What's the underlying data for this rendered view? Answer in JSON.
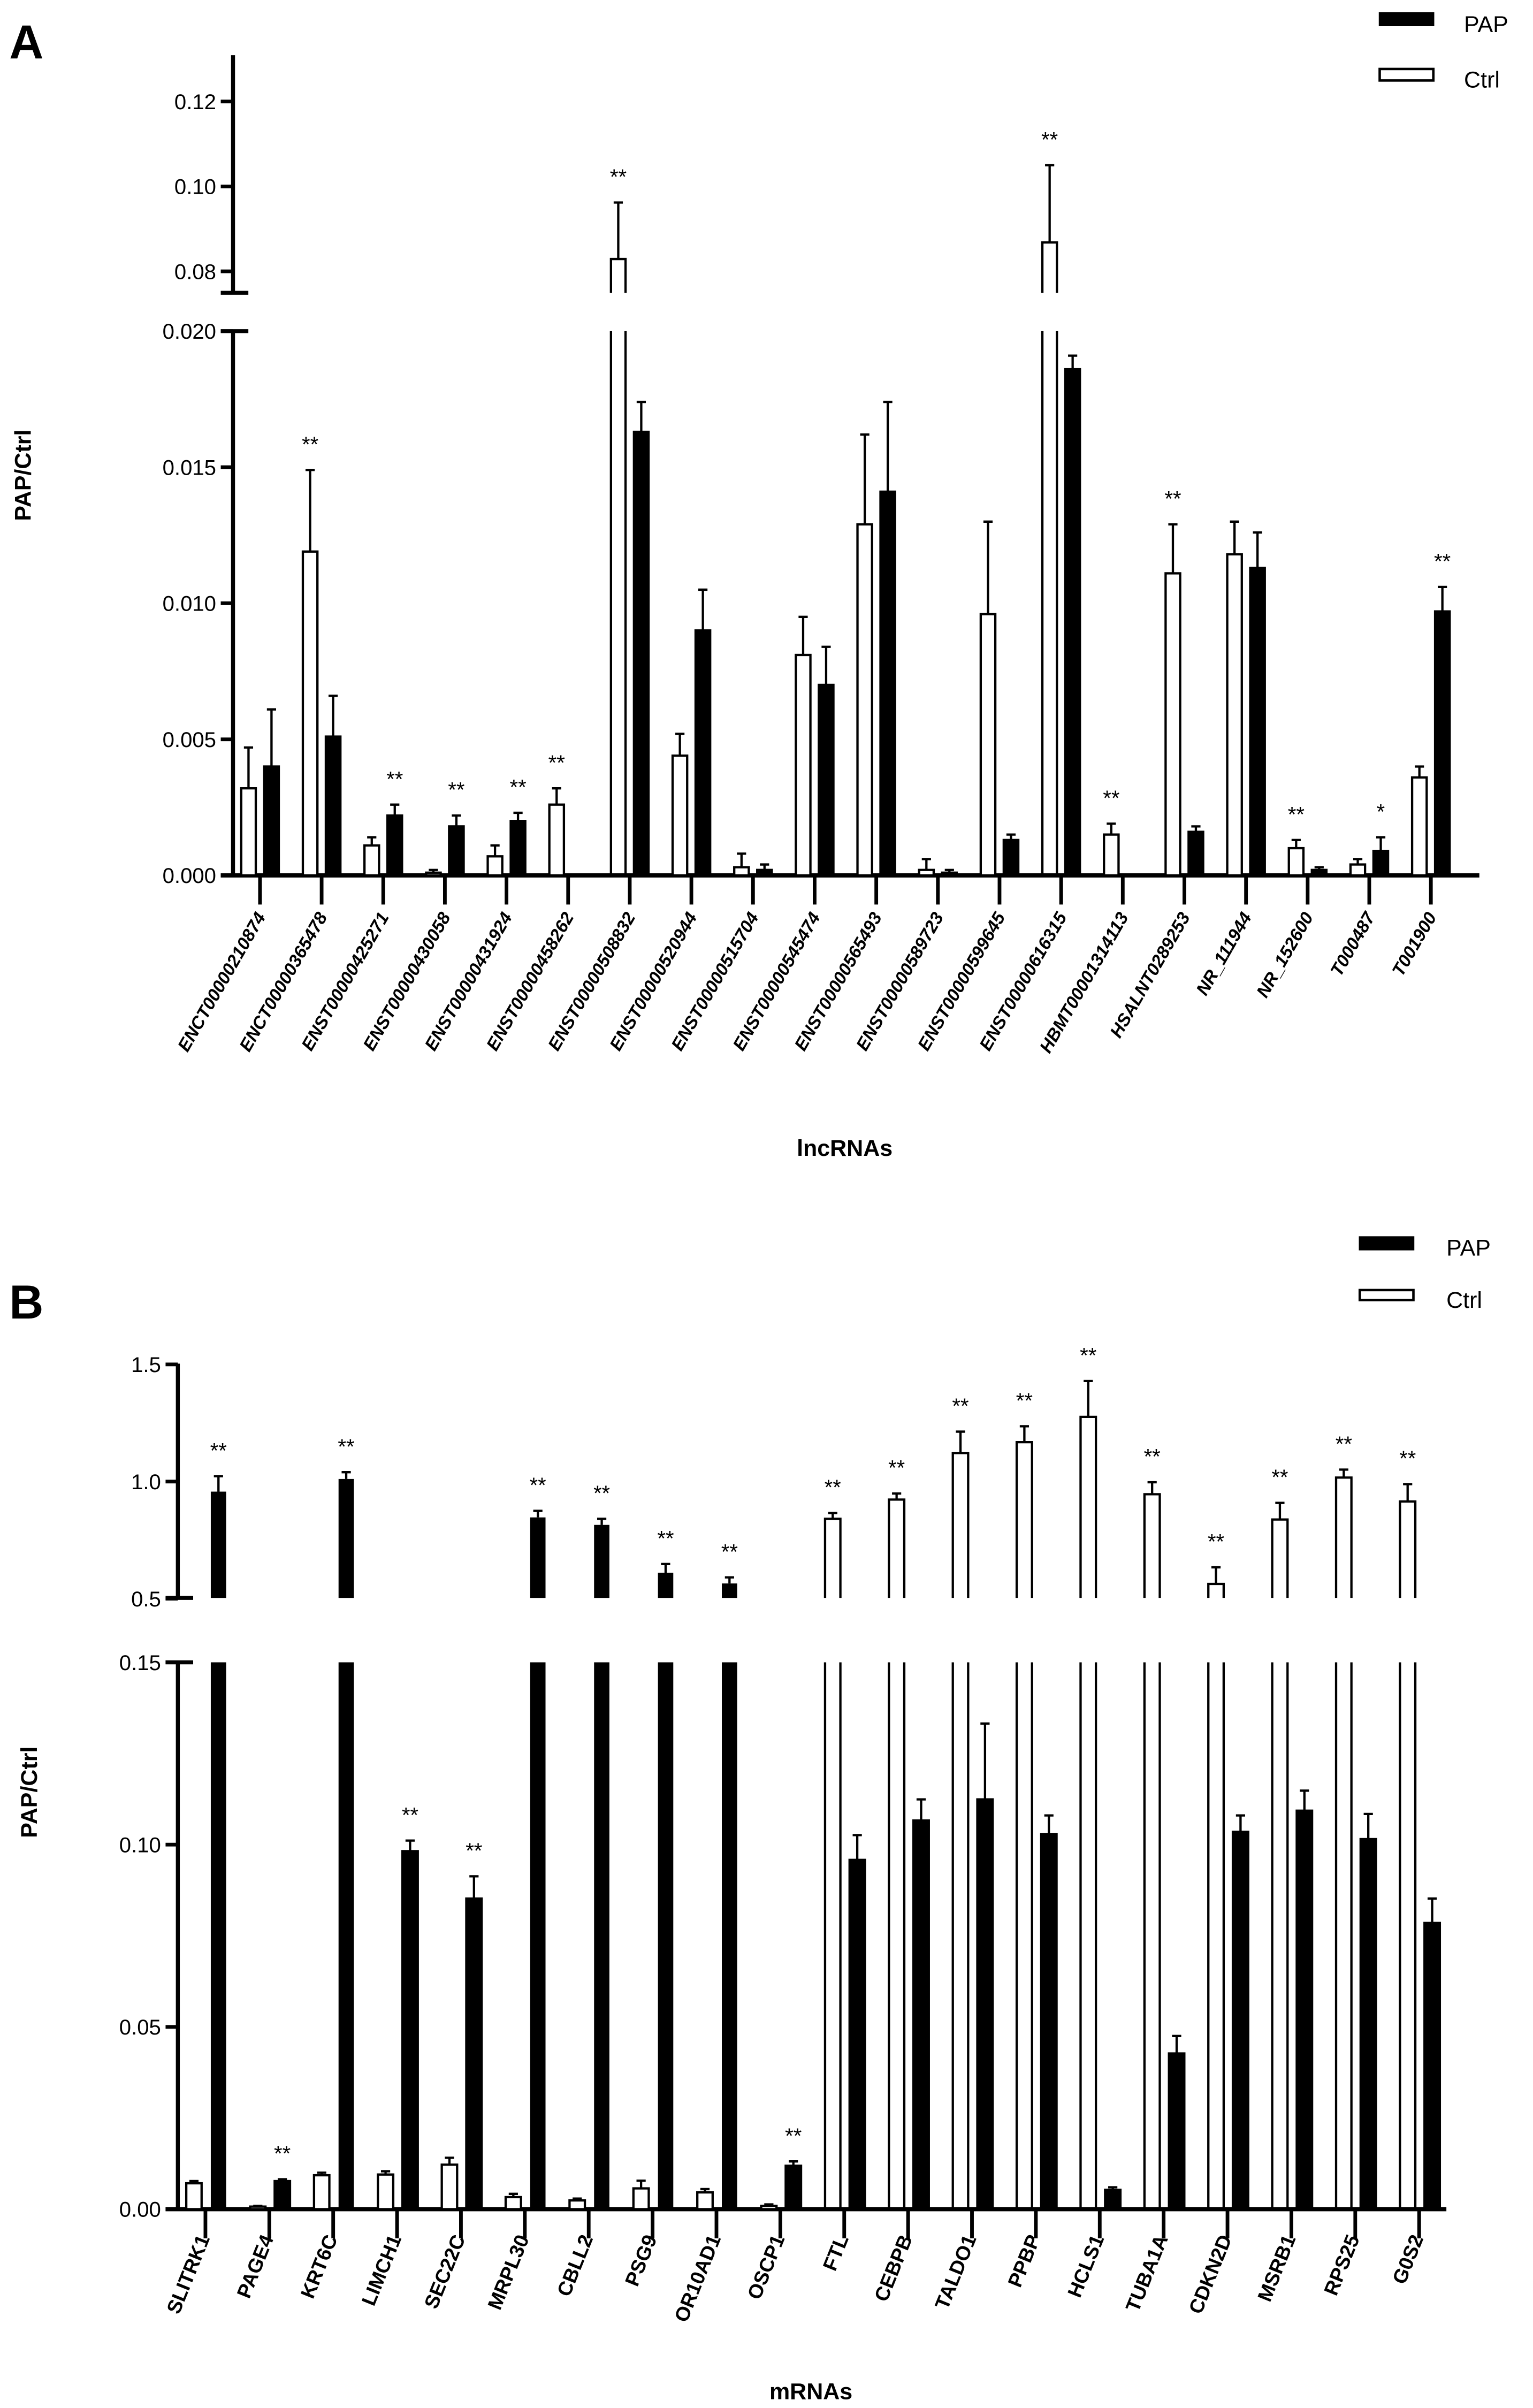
{
  "chart_data": [
    {
      "panel_label": "A",
      "type": "bar",
      "xlabel": "lncRNAs",
      "ylabel": "PAP/Ctrl",
      "axis_break": true,
      "ylim_lower": [
        0,
        0.02
      ],
      "ylim_upper": [
        0.075,
        0.13
      ],
      "yticks_lower": [
        {
          "value": 0,
          "label": "0.000"
        },
        {
          "value": 0.005,
          "label": "0.005"
        },
        {
          "value": 0.01,
          "label": "0.010"
        },
        {
          "value": 0.015,
          "label": "0.015"
        },
        {
          "value": 0.02,
          "label": "0.020"
        }
      ],
      "yticks_upper": [
        {
          "value": 0.08,
          "label": "0.08"
        },
        {
          "value": 0.1,
          "label": "0.10"
        },
        {
          "value": 0.12,
          "label": "0.12"
        }
      ],
      "grid": false,
      "legend": {
        "position": "top-right",
        "entries": [
          {
            "name": "PAP",
            "fill": "#000000"
          },
          {
            "name": "Ctrl",
            "fill": "#ffffff"
          }
        ]
      },
      "categories": [
        "ENCT00000210874",
        "ENCT00000365478",
        "ENST00000425271",
        "ENST00000430058",
        "ENST00000431924",
        "ENST00000458262",
        "ENST00000508832",
        "ENST00000520944",
        "ENST00000515704",
        "ENST00000545474",
        "ENST00000565493",
        "ENST00000589723",
        "ENST00000599645",
        "ENST00000616315",
        "HBMT00001314113",
        "HSALNT0289253",
        "NR_111944",
        "NR_152600",
        "T000487",
        "T001900"
      ],
      "series": [
        {
          "name": "Ctrl",
          "fill": "#ffffff",
          "values": [
            0.0032,
            0.0119,
            0.0011,
            0.0001,
            0.0007,
            0.0026,
            0.0829,
            0.0044,
            0.0003,
            0.0081,
            0.0129,
            0.0002,
            0.0096,
            0.0868,
            0.0015,
            0.0111,
            0.0118,
            0.001,
            0.0004,
            0.0036
          ],
          "errors": [
            0.0015,
            0.003,
            0.0003,
            0.0001,
            0.0004,
            0.0006,
            0.0133,
            0.0008,
            0.0005,
            0.0014,
            0.0033,
            0.0004,
            0.0034,
            0.0182,
            0.0004,
            0.0018,
            0.0012,
            0.0003,
            0.0002,
            0.0004
          ]
        },
        {
          "name": "PAP",
          "fill": "#000000",
          "values": [
            0.004,
            0.0051,
            0.0022,
            0.0018,
            0.002,
            0,
            0.0163,
            0.009,
            0.0002,
            0.007,
            0.0141,
            0.0001,
            0.0013,
            0.0186,
            0,
            0.0016,
            0.0113,
            0.0002,
            0.0009,
            0.0097
          ],
          "errors": [
            0.0021,
            0.0015,
            0.0004,
            0.0004,
            0.0003,
            0,
            0.0011,
            0.0015,
            0.0002,
            0.0014,
            0.0033,
            0.0001,
            0.0002,
            0.0005,
            0,
            0.0002,
            0.0013,
            0.0001,
            0.0005,
            0.0009
          ]
        }
      ],
      "significance": [
        {
          "category": "ENCT00000365478",
          "mark": "**",
          "over": "Ctrl"
        },
        {
          "category": "ENST00000425271",
          "mark": "**",
          "over": "PAP"
        },
        {
          "category": "ENST00000430058",
          "mark": "**",
          "over": "PAP"
        },
        {
          "category": "ENST00000431924",
          "mark": "**",
          "over": "PAP"
        },
        {
          "category": "ENST00000458262",
          "mark": "**",
          "over": "Ctrl"
        },
        {
          "category": "ENST00000508832",
          "mark": "**",
          "over": "Ctrl"
        },
        {
          "category": "ENST00000616315",
          "mark": "**",
          "over": "Ctrl"
        },
        {
          "category": "HBMT00001314113",
          "mark": "**",
          "over": "Ctrl"
        },
        {
          "category": "HSALNT0289253",
          "mark": "**",
          "over": "Ctrl"
        },
        {
          "category": "NR_152600",
          "mark": "**",
          "over": "Ctrl"
        },
        {
          "category": "T000487",
          "mark": "*",
          "over": "PAP"
        },
        {
          "category": "T001900",
          "mark": "**",
          "over": "PAP"
        }
      ]
    },
    {
      "panel_label": "B",
      "type": "bar",
      "xlabel": "mRNAs",
      "ylabel": "PAP/Ctrl",
      "axis_break": true,
      "ylim_lower": [
        0,
        0.15
      ],
      "ylim_upper": [
        0.5,
        1.5
      ],
      "yticks_lower": [
        {
          "value": 0,
          "label": "0.00"
        },
        {
          "value": 0.05,
          "label": "0.05"
        },
        {
          "value": 0.1,
          "label": "0.10"
        },
        {
          "value": 0.15,
          "label": "0.15"
        }
      ],
      "yticks_upper": [
        {
          "value": 0.5,
          "label": "0.5"
        },
        {
          "value": 1.0,
          "label": "1.0"
        },
        {
          "value": 1.5,
          "label": "1.5"
        }
      ],
      "grid": false,
      "legend": {
        "position": "top-right",
        "entries": [
          {
            "name": "PAP",
            "fill": "#000000"
          },
          {
            "name": "Ctrl",
            "fill": "#ffffff"
          }
        ]
      },
      "categories": [
        "SLITRK1",
        "PAGE4",
        "KRT6C",
        "LIMCH1",
        "SEC22C",
        "MRPL30",
        "CBLL2",
        "PSG9",
        "OR10AD1",
        "OSCP1",
        "FTL",
        "CEBPB",
        "TALDO1",
        "PPBP",
        "HCLS1",
        "TUBA1A",
        "CDKN2D",
        "MSRB1",
        "RPS25",
        "G0S2"
      ],
      "series": [
        {
          "name": "Ctrl",
          "fill": "#ffffff",
          "values": [
            0.0071,
            0.0007,
            0.0093,
            0.0095,
            0.0122,
            0.0033,
            0.0024,
            0.0057,
            0.0046,
            0.0009,
            0.841,
            0.923,
            1.122,
            1.168,
            1.276,
            0.946,
            0.563,
            0.838,
            1.017,
            0.915
          ],
          "errors": [
            0.0006,
            0.0002,
            0.0007,
            0.0009,
            0.0019,
            0.0009,
            0.0005,
            0.0021,
            0.0009,
            0.0004,
            0.025,
            0.026,
            0.091,
            0.068,
            0.153,
            0.051,
            0.071,
            0.071,
            0.034,
            0.074
          ]
        },
        {
          "name": "PAP",
          "fill": "#000000",
          "values": [
            0.957,
            0.0077,
            1.011,
            0.0982,
            0.0852,
            0.847,
            0.815,
            0.611,
            0.565,
            0.0119,
            0.0958,
            0.1066,
            0.1124,
            0.1029,
            0.0053,
            0.0427,
            0.1035,
            0.1093,
            0.1015,
            0.0785
          ],
          "errors": [
            0.066,
            0.0005,
            0.029,
            0.0029,
            0.0061,
            0.028,
            0.026,
            0.037,
            0.026,
            0.0012,
            0.0068,
            0.0058,
            0.0208,
            0.0051,
            0.0007,
            0.0048,
            0.0045,
            0.0055,
            0.0069,
            0.0067
          ]
        }
      ],
      "significance": [
        {
          "category": "SLITRK1",
          "mark": "**",
          "over": "PAP"
        },
        {
          "category": "PAGE4",
          "mark": "**",
          "over": "PAP"
        },
        {
          "category": "KRT6C",
          "mark": "**",
          "over": "PAP"
        },
        {
          "category": "LIMCH1",
          "mark": "**",
          "over": "PAP"
        },
        {
          "category": "SEC22C",
          "mark": "**",
          "over": "PAP"
        },
        {
          "category": "MRPL30",
          "mark": "**",
          "over": "PAP"
        },
        {
          "category": "CBLL2",
          "mark": "**",
          "over": "PAP"
        },
        {
          "category": "PSG9",
          "mark": "**",
          "over": "PAP"
        },
        {
          "category": "OR10AD1",
          "mark": "**",
          "over": "PAP"
        },
        {
          "category": "OSCP1",
          "mark": "**",
          "over": "PAP"
        },
        {
          "category": "FTL",
          "mark": "**",
          "over": "Ctrl"
        },
        {
          "category": "CEBPB",
          "mark": "**",
          "over": "Ctrl"
        },
        {
          "category": "TALDO1",
          "mark": "**",
          "over": "Ctrl"
        },
        {
          "category": "PPBP",
          "mark": "**",
          "over": "Ctrl"
        },
        {
          "category": "HCLS1",
          "mark": "**",
          "over": "Ctrl"
        },
        {
          "category": "TUBA1A",
          "mark": "**",
          "over": "Ctrl"
        },
        {
          "category": "CDKN2D",
          "mark": "**",
          "over": "Ctrl"
        },
        {
          "category": "MSRB1",
          "mark": "**",
          "over": "Ctrl"
        },
        {
          "category": "RPS25",
          "mark": "**",
          "over": "Ctrl"
        },
        {
          "category": "G0S2",
          "mark": "**",
          "over": "Ctrl"
        }
      ]
    }
  ]
}
